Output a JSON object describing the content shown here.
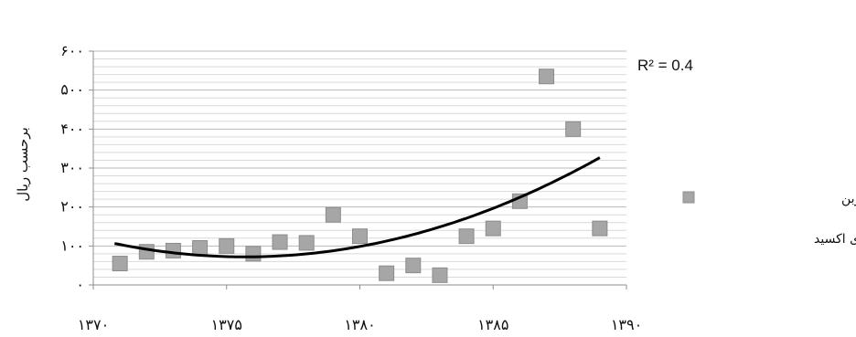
{
  "chart_data": {
    "type": "scatter",
    "title": "",
    "xlabel": "",
    "ylabel": "برحسب ریال",
    "xlim": [
      1370,
      1390
    ],
    "ylim": [
      0,
      600
    ],
    "x_ticks": [
      1370,
      1375,
      1380,
      1385,
      1390
    ],
    "y_ticks": [
      0,
      100,
      200,
      300,
      400,
      500,
      600
    ],
    "x_tick_labels": [
      "۱۳۷۰",
      "۱۳۷۵",
      "۱۳۸۰",
      "۱۳۸۵",
      "۱۳۹۰"
    ],
    "y_tick_labels": [
      "۰",
      "۱۰۰",
      "۲۰۰",
      "۳۰۰",
      "۴۰۰",
      "۵۰۰",
      "۶۰۰"
    ],
    "grid": true,
    "legend_position": "right",
    "series": [
      {
        "name": "قیمت سایه‌ای کربن دی اکسید",
        "marker": "square",
        "color": "#a6a6a6",
        "points": [
          {
            "x": 1371,
            "y": 55
          },
          {
            "x": 1372,
            "y": 85
          },
          {
            "x": 1373,
            "y": 88
          },
          {
            "x": 1374,
            "y": 95
          },
          {
            "x": 1375,
            "y": 100
          },
          {
            "x": 1376,
            "y": 80
          },
          {
            "x": 1377,
            "y": 110
          },
          {
            "x": 1378,
            "y": 108
          },
          {
            "x": 1379,
            "y": 180
          },
          {
            "x": 1380,
            "y": 125
          },
          {
            "x": 1381,
            "y": 30
          },
          {
            "x": 1382,
            "y": 50
          },
          {
            "x": 1383,
            "y": 25
          },
          {
            "x": 1384,
            "y": 125
          },
          {
            "x": 1385,
            "y": 145
          },
          {
            "x": 1386,
            "y": 215
          },
          {
            "x": 1387,
            "y": 535
          },
          {
            "x": 1388,
            "y": 400
          },
          {
            "x": 1389,
            "y": 145
          }
        ]
      }
    ],
    "trendline": {
      "type": "polynomial",
      "order": 2,
      "color": "#000000",
      "x_range": [
        1370.8,
        1389
      ],
      "r_squared_label": "R² = 0.4"
    },
    "legend": {
      "line1": "قیمت سایه‌ای کربن",
      "line2": "دی اکسید"
    }
  }
}
